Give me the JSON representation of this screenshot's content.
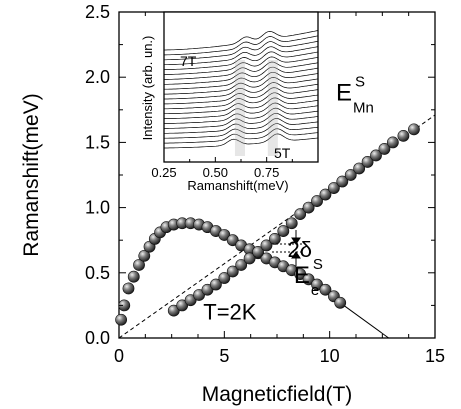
{
  "chart_data": [
    {
      "type": "scatter",
      "title": "",
      "xlabel": "Magneticfield(T)",
      "ylabel": "Ramanshift(meV)",
      "xlim": [
        0,
        15
      ],
      "ylim": [
        0.0,
        2.5
      ],
      "x_ticks": [
        "0",
        "5",
        "10",
        "15"
      ],
      "y_ticks": [
        "0.0",
        "0.5",
        "1.0",
        "1.5",
        "2.0",
        "2.5"
      ],
      "grid": false,
      "legend": "none",
      "series": [
        {
          "values": [
            [
              0.1,
              0.14
            ],
            [
              0.25,
              0.25
            ],
            [
              0.45,
              0.38
            ],
            [
              0.7,
              0.47
            ],
            [
              0.95,
              0.56
            ],
            [
              1.2,
              0.63
            ],
            [
              1.45,
              0.7
            ],
            [
              1.7,
              0.76
            ],
            [
              1.95,
              0.81
            ],
            [
              2.25,
              0.85
            ],
            [
              2.6,
              0.87
            ],
            [
              3.0,
              0.88
            ],
            [
              3.4,
              0.88
            ],
            [
              3.8,
              0.87
            ],
            [
              4.2,
              0.85
            ],
            [
              4.6,
              0.82
            ],
            [
              5.0,
              0.79
            ],
            [
              5.4,
              0.75
            ],
            [
              5.8,
              0.71
            ],
            [
              6.2,
              0.68
            ],
            [
              6.6,
              0.65
            ],
            [
              7.0,
              0.61
            ],
            [
              7.4,
              0.58
            ],
            [
              7.8,
              0.55
            ],
            [
              8.2,
              0.52
            ],
            [
              8.6,
              0.49
            ],
            [
              9.0,
              0.45
            ],
            [
              9.4,
              0.41
            ],
            [
              9.8,
              0.37
            ],
            [
              10.2,
              0.32
            ],
            [
              10.5,
              0.27
            ]
          ]
        },
        {
          "values": [
            [
              2.6,
              0.21
            ],
            [
              3.0,
              0.25
            ],
            [
              3.4,
              0.29
            ],
            [
              3.8,
              0.33
            ],
            [
              4.2,
              0.37
            ],
            [
              4.6,
              0.41
            ],
            [
              5.0,
              0.46
            ],
            [
              5.4,
              0.51
            ],
            [
              5.8,
              0.56
            ],
            [
              6.2,
              0.61
            ],
            [
              6.6,
              0.66
            ],
            [
              7.0,
              0.71
            ],
            [
              7.4,
              0.76
            ],
            [
              7.8,
              0.82
            ],
            [
              8.2,
              0.88
            ],
            [
              8.6,
              0.95
            ],
            [
              9.0,
              1.0
            ],
            [
              9.4,
              1.05
            ],
            [
              9.8,
              1.1
            ],
            [
              10.2,
              1.15
            ],
            [
              10.6,
              1.2
            ],
            [
              11.0,
              1.25
            ],
            [
              11.4,
              1.3
            ],
            [
              11.8,
              1.35
            ],
            [
              12.2,
              1.4
            ],
            [
              12.6,
              1.45
            ],
            [
              13.0,
              1.5
            ],
            [
              13.5,
              1.55
            ],
            [
              14.0,
              1.6
            ]
          ]
        }
      ],
      "lines": [
        {
          "style": "dashed",
          "points": [
            [
              0,
              0
            ],
            [
              15,
              1.71
            ]
          ]
        },
        {
          "style": "solid",
          "points": [
            [
              10.5,
              0.27
            ],
            [
              12.8,
              0.0
            ]
          ]
        }
      ],
      "annotations": [
        {
          "key": "mn_label",
          "text": "E",
          "sup": "S",
          "sub": "Mn",
          "x": 10.3,
          "y": 1.82
        },
        {
          "key": "e_label",
          "text": "E",
          "sup": "S",
          "sub": "e",
          "x": 8.3,
          "y": 0.42
        },
        {
          "key": "delta_label",
          "text": "2δ",
          "x": 8.0,
          "y": 0.62
        },
        {
          "key": "temp_label",
          "text": "T=2K",
          "x": 4.0,
          "y": 0.14
        }
      ]
    },
    {
      "type": "line",
      "title": "",
      "xlabel": "Ramanshift(meV)",
      "ylabel": "Intensity (arb. un.)",
      "xlim": [
        0.25,
        1.0
      ],
      "x_ticks": [
        "0.25",
        "0.50",
        "0.75"
      ],
      "annotations": [
        {
          "key": "top_field",
          "text": "7T"
        },
        {
          "key": "bottom_field",
          "text": "5T"
        }
      ],
      "series_count": 21,
      "features": [
        {
          "name": "electron-peak",
          "x": 0.62
        },
        {
          "name": "mn-peak",
          "x": 0.78
        }
      ]
    }
  ],
  "colors": {
    "marker": "#4a4a4a",
    "marker_highlight": "#e8e8e8",
    "axis": "#000000",
    "trace_shade": "#b8b8b8"
  }
}
